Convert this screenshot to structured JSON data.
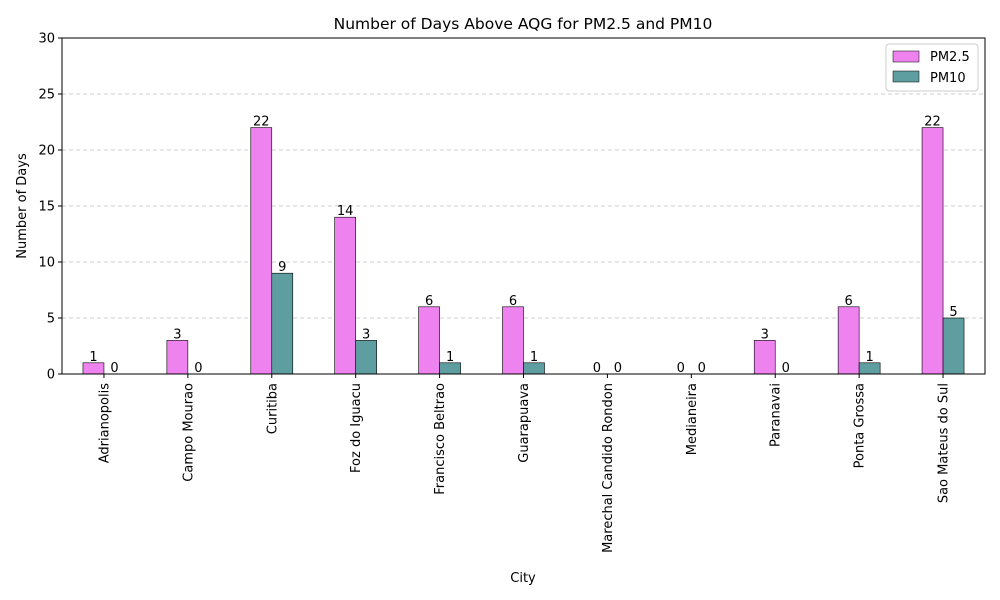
{
  "chart_data": {
    "type": "bar",
    "title": "Number of Days Above AQG for PM2.5 and PM10",
    "xlabel": "City",
    "ylabel": "Number of Days",
    "categories": [
      "Adrianopolis",
      "Campo Mourao",
      "Curitiba",
      "Foz do Iguacu",
      "Francisco Beltrao",
      "Guarapuava",
      "Marechal Candido Rondon",
      "Medianeira",
      "Paranavai",
      "Ponta Grossa",
      "Sao Mateus do Sul"
    ],
    "series": [
      {
        "name": "PM2.5",
        "values": [
          1,
          3,
          22,
          14,
          6,
          6,
          0,
          0,
          3,
          6,
          22
        ],
        "color": "#ee82ee"
      },
      {
        "name": "PM10",
        "values": [
          0,
          0,
          9,
          3,
          1,
          1,
          0,
          0,
          0,
          1,
          5
        ],
        "color": "#5f9ea0"
      }
    ],
    "ylim": [
      0,
      30
    ],
    "yticks": [
      0,
      5,
      10,
      15,
      20,
      25,
      30
    ],
    "grid": "y-dashed",
    "legend_position": "top-right"
  }
}
